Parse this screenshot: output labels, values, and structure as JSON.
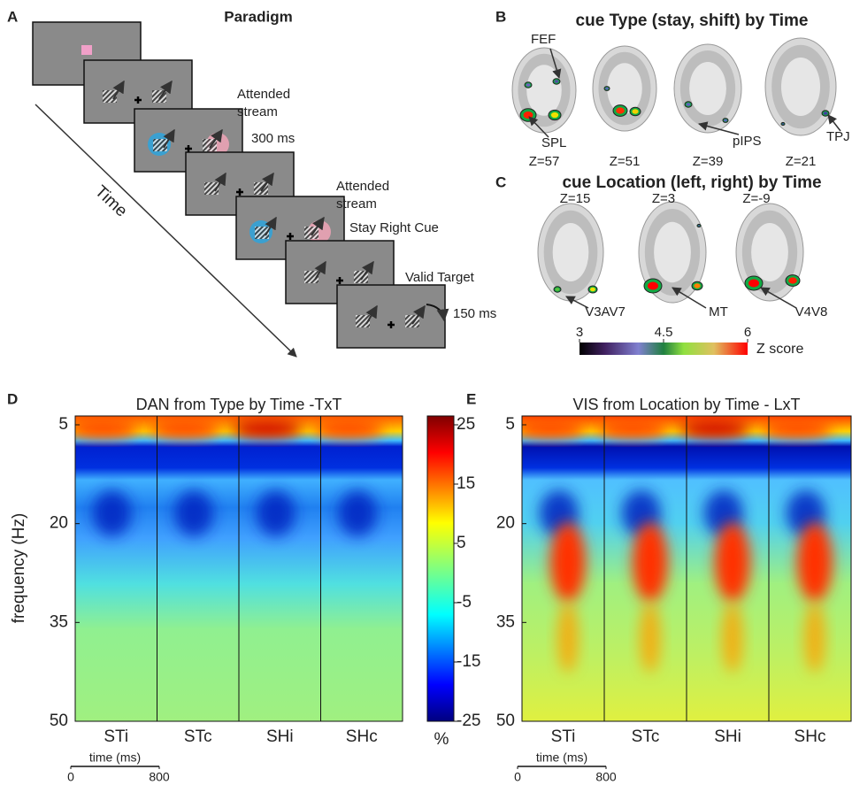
{
  "panel_a": {
    "letter": "A",
    "title": "Paradigm",
    "time_label": "Time",
    "attended_1": [
      "Attended",
      "stream"
    ],
    "cue_duration": "300 ms",
    "attended_2": [
      "Attended",
      "stream"
    ],
    "cue_name": "Stay Right Cue",
    "target_name": "Valid Target",
    "target_duration": "150 ms"
  },
  "panel_b": {
    "letter": "B",
    "title": "cue Type (stay, shift) by Time",
    "slices": [
      "Z=57",
      "Z=51",
      "Z=39",
      "Z=21"
    ],
    "regions": [
      "FEF",
      "SPL",
      "pIPS",
      "TPJ"
    ]
  },
  "panel_c": {
    "letter": "C",
    "title": "cue Location (left, right) by Time",
    "slices": [
      "Z=15",
      "Z=3",
      "Z=-9"
    ],
    "regions": [
      "V3AV7",
      "MT",
      "V4V8"
    ],
    "colorbar": {
      "ticks": [
        3,
        4.5,
        6
      ],
      "label": "Z score"
    }
  },
  "panel_d": {
    "letter": "D",
    "title": "DAN from Type by Time -TxT",
    "y_label": "frequency (Hz)",
    "yticks": [
      5,
      20,
      35,
      50
    ],
    "conditions": [
      "STi",
      "STc",
      "SHi",
      "SHc"
    ],
    "time_label": "time (ms)",
    "time_ticks": [
      0,
      800
    ]
  },
  "colorbar": {
    "ticks": [
      25,
      15,
      5,
      -5,
      -15,
      -25
    ],
    "unit": "%"
  },
  "panel_e": {
    "letter": "E",
    "title": "VIS from Location by Time - LxT",
    "yticks": [
      5,
      20,
      35,
      50
    ],
    "conditions": [
      "STi",
      "STc",
      "SHi",
      "SHc"
    ],
    "time_label": "time (ms)",
    "time_ticks": [
      0,
      800
    ]
  }
}
